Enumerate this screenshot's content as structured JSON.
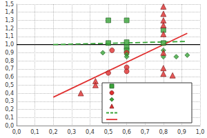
{
  "chart_data": {
    "type": "scatter",
    "xlim": [
      0,
      1
    ],
    "ylim": [
      0,
      1.5
    ],
    "xticks": [
      {
        "value": 0,
        "label": "0,0"
      },
      {
        "value": 0.1,
        "label": "0,1"
      },
      {
        "value": 0.2,
        "label": "0,2"
      },
      {
        "value": 0.3,
        "label": "0,3"
      },
      {
        "value": 0.4,
        "label": "0,4"
      },
      {
        "value": 0.5,
        "label": "0,5"
      },
      {
        "value": 0.6,
        "label": "0,6"
      },
      {
        "value": 0.7,
        "label": "0,7"
      },
      {
        "value": 0.8,
        "label": "0,8"
      },
      {
        "value": 0.9,
        "label": "0,9"
      },
      {
        "value": 1,
        "label": "1,0"
      }
    ],
    "yticks": [
      {
        "value": 0,
        "label": "0,0"
      },
      {
        "value": 0.1,
        "label": "0,1"
      },
      {
        "value": 0.2,
        "label": "0,2"
      },
      {
        "value": 0.3,
        "label": "0,3"
      },
      {
        "value": 0.4,
        "label": "0,4"
      },
      {
        "value": 0.5,
        "label": "0,5"
      },
      {
        "value": 0.6,
        "label": "0,6"
      },
      {
        "value": 0.7,
        "label": "0,7"
      },
      {
        "value": 0.8,
        "label": "0,8"
      },
      {
        "value": 0.9,
        "label": "0,9"
      },
      {
        "value": 1,
        "label": "1,0"
      },
      {
        "value": 1.1,
        "label": "1,1"
      },
      {
        "value": 1.2,
        "label": "1,2"
      },
      {
        "value": 1.3,
        "label": "1,3"
      },
      {
        "value": 1.4,
        "label": "1,4"
      },
      {
        "value": 1.5,
        "label": "1,5"
      }
    ],
    "grid": true,
    "legend": "lower right",
    "reference_lines": [
      {
        "y": 1,
        "color": "#000000"
      }
    ],
    "series": [
      {
        "type": "scatter",
        "marker": "square",
        "color": "#3aa53a",
        "x": [
          0.5,
          0.6,
          0.5,
          0.6,
          0.6,
          0.6,
          0.8,
          0.8
        ],
        "values": [
          1.3,
          1.3,
          1.02,
          1.03,
          0.97,
          0.93,
          1.18,
          1.02
        ]
      },
      {
        "type": "scatter",
        "marker": "circle",
        "color": "#e03030",
        "x": [
          0.52,
          0.6,
          0.5,
          0.6,
          0.6
        ],
        "values": [
          0.93,
          0.9,
          0.65,
          0.72,
          0.67
        ]
      },
      {
        "type": "scatter",
        "marker": "diamond",
        "color": "#3aa53a",
        "x": [
          0.47,
          0.6,
          0.6,
          0.8,
          0.87,
          0.93,
          0.8
        ],
        "values": [
          0.9,
          0.88,
          0.85,
          0.85,
          0.85,
          0.87,
          0.93
        ]
      },
      {
        "type": "scatter",
        "marker": "triangle",
        "color": "#e03030",
        "x": [
          0.8,
          0.8,
          0.8,
          0.8,
          0.8,
          0.8,
          0.8,
          0.8,
          0.85,
          0.43,
          0.43,
          0.35
        ],
        "values": [
          1.47,
          1.38,
          1.3,
          1.24,
          1.13,
          0.9,
          0.71,
          0.64,
          0.62,
          0.55,
          0.5,
          0.4
        ]
      },
      {
        "type": "line",
        "line_style": "dashed",
        "color": "#3aa53a",
        "x": [
          0.2,
          0.93
        ],
        "values": [
          1.0,
          1.04
        ]
      },
      {
        "type": "line",
        "line_style": "solid",
        "color": "#e03030",
        "x": [
          0.2,
          0.93
        ],
        "values": [
          0.35,
          1.14
        ]
      }
    ]
  }
}
